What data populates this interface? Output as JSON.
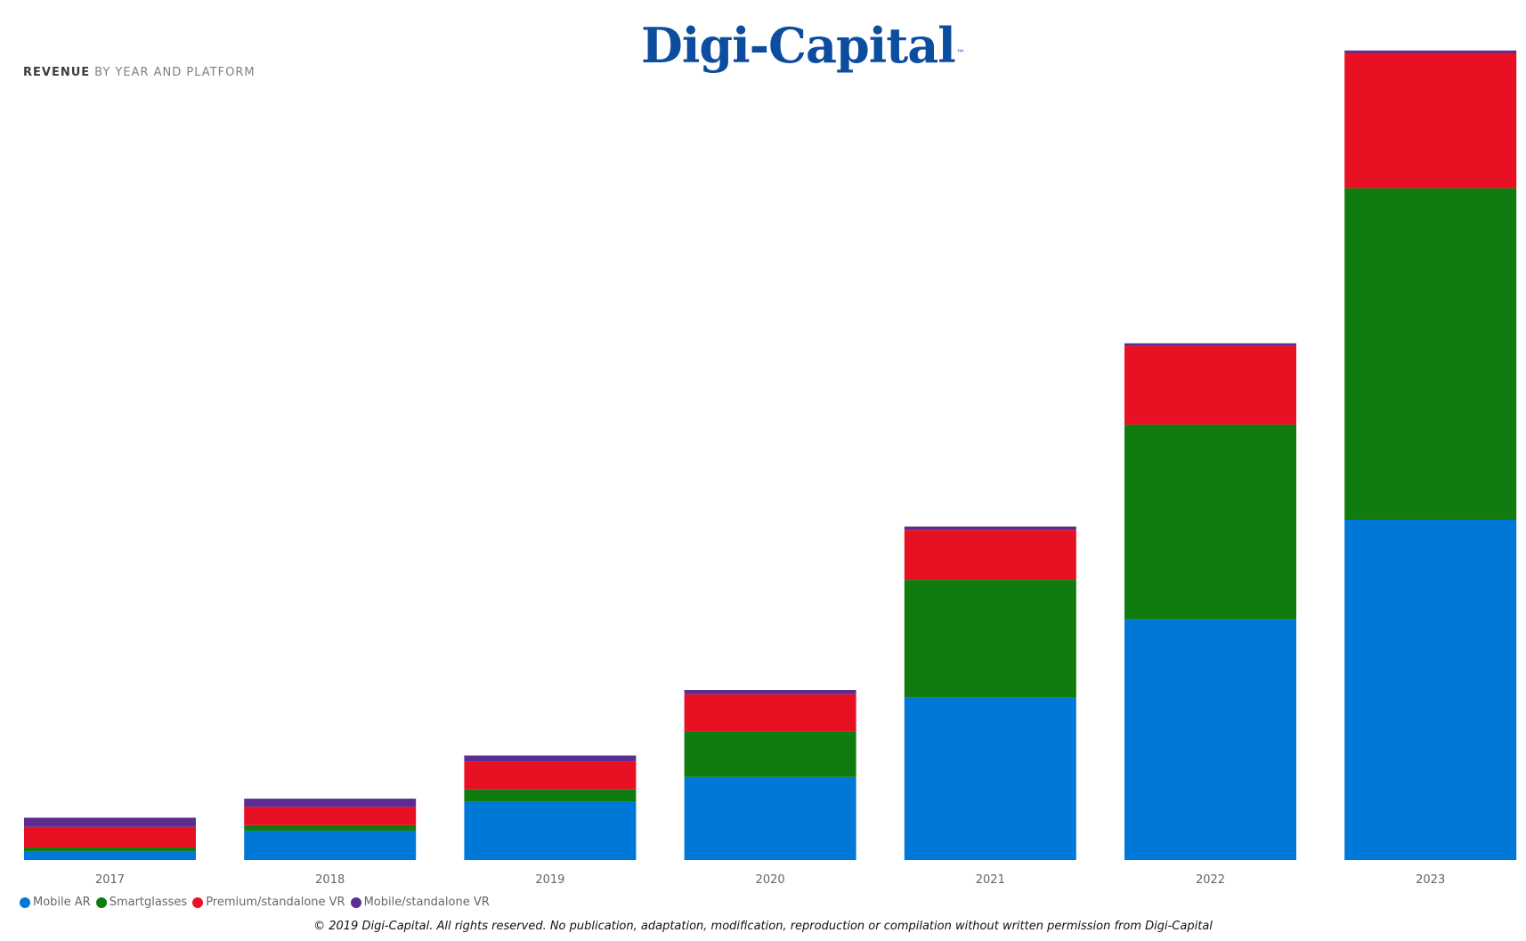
{
  "logo": {
    "text": "Digi-Capital",
    "tm": "™"
  },
  "title": {
    "strong": "REVENUE",
    "sub": "BY YEAR AND PLATFORM"
  },
  "chart_data": {
    "type": "bar",
    "stacked": true,
    "categories": [
      "2017",
      "2018",
      "2019",
      "2020",
      "2021",
      "2022",
      "2023"
    ],
    "series": [
      {
        "name": "Mobile AR",
        "color": "#0078d7",
        "values": [
          1.0,
          3.5,
          7.0,
          10.0,
          19.6,
          29.0,
          41.0
        ]
      },
      {
        "name": "Smartglasses",
        "color": "#107c10",
        "values": [
          0.5,
          0.7,
          1.5,
          5.5,
          14.2,
          23.5,
          40.0
        ]
      },
      {
        "name": "Premium/standalone VR",
        "color": "#e81123",
        "values": [
          2.5,
          2.2,
          3.4,
          4.5,
          6.0,
          9.5,
          16.3
        ]
      },
      {
        "name": "Mobile/standalone VR",
        "color": "#5c2d91",
        "values": [
          1.1,
          1.0,
          0.7,
          0.5,
          0.4,
          0.3,
          0.3
        ]
      }
    ],
    "ylim": [
      0,
      98
    ],
    "legend_position": "bottom-left",
    "grid": false
  },
  "copyright": "© 2019 Digi-Capital. All rights reserved. No publication, adaptation, modification, reproduction or compilation without written permission from Digi-Capital"
}
